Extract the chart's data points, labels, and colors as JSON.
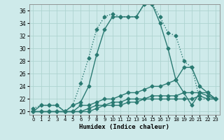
{
  "xlabel": "Humidex (Indice chaleur)",
  "ylabel": "",
  "background_color": "#ceeaea",
  "line_color": "#2a7a72",
  "grid_color": "#aed4d0",
  "xlim": [
    -0.5,
    23.5
  ],
  "ylim": [
    19.5,
    37.0
  ],
  "xticks": [
    0,
    1,
    2,
    3,
    4,
    5,
    6,
    7,
    8,
    9,
    10,
    11,
    12,
    13,
    14,
    15,
    16,
    17,
    18,
    19,
    20,
    21,
    22,
    23
  ],
  "yticks": [
    20,
    22,
    24,
    26,
    28,
    30,
    32,
    34,
    36
  ],
  "series": [
    {
      "x": [
        0,
        1,
        2,
        3,
        4,
        5,
        6,
        7,
        8,
        9,
        10,
        11,
        12,
        13,
        14,
        15,
        16,
        17,
        18,
        19,
        20,
        21,
        22,
        23
      ],
      "y": [
        20.5,
        21,
        21,
        21,
        20,
        21,
        24.5,
        28.5,
        33,
        35,
        35.5,
        35,
        35,
        35,
        37,
        37,
        35,
        32.5,
        32,
        28,
        27,
        22,
        22,
        22
      ],
      "marker": "D",
      "markersize": 2.5,
      "linewidth": 1.0,
      "linestyle": "dotted"
    },
    {
      "x": [
        0,
        1,
        2,
        3,
        4,
        5,
        6,
        7,
        8,
        9,
        10,
        11,
        12,
        13,
        14,
        15,
        16,
        17,
        18,
        19,
        20,
        21,
        22,
        23
      ],
      "y": [
        20,
        21,
        21,
        21,
        20,
        21,
        21.5,
        24,
        29,
        33,
        35,
        35,
        35,
        35,
        37,
        37,
        34,
        30,
        25,
        23,
        21,
        23,
        23,
        22
      ],
      "marker": "D",
      "markersize": 2.5,
      "linewidth": 1.0,
      "linestyle": "solid"
    },
    {
      "x": [
        0,
        1,
        2,
        3,
        4,
        5,
        6,
        7,
        8,
        9,
        10,
        11,
        12,
        13,
        14,
        15,
        16,
        17,
        18,
        19,
        20,
        21,
        22,
        23
      ],
      "y": [
        20,
        20,
        20,
        20,
        20,
        20,
        21,
        21,
        21.5,
        22,
        22,
        22.5,
        23,
        23,
        23.5,
        24,
        24,
        24.5,
        25,
        27,
        27,
        24,
        23,
        22
      ],
      "marker": "D",
      "markersize": 2.5,
      "linewidth": 1.0,
      "linestyle": "solid"
    },
    {
      "x": [
        0,
        1,
        2,
        3,
        4,
        5,
        6,
        7,
        8,
        9,
        10,
        11,
        12,
        13,
        14,
        15,
        16,
        17,
        18,
        19,
        20,
        21,
        22,
        23
      ],
      "y": [
        20,
        20,
        20,
        20,
        20,
        20,
        20,
        20.5,
        21,
        21,
        21.5,
        21.5,
        22,
        22,
        22,
        22.5,
        22.5,
        22.5,
        22.5,
        23,
        23,
        23,
        22.5,
        22
      ],
      "marker": "D",
      "markersize": 2.5,
      "linewidth": 1.0,
      "linestyle": "solid"
    },
    {
      "x": [
        0,
        1,
        2,
        3,
        4,
        5,
        6,
        7,
        8,
        9,
        10,
        11,
        12,
        13,
        14,
        15,
        16,
        17,
        18,
        19,
        20,
        21,
        22,
        23
      ],
      "y": [
        20,
        20,
        20,
        20,
        20,
        20,
        20,
        20,
        20.5,
        21,
        21,
        21,
        21.5,
        21.5,
        22,
        22,
        22,
        22,
        22,
        22,
        22,
        22.5,
        22,
        22
      ],
      "marker": "D",
      "markersize": 2.5,
      "linewidth": 1.0,
      "linestyle": "solid"
    }
  ]
}
